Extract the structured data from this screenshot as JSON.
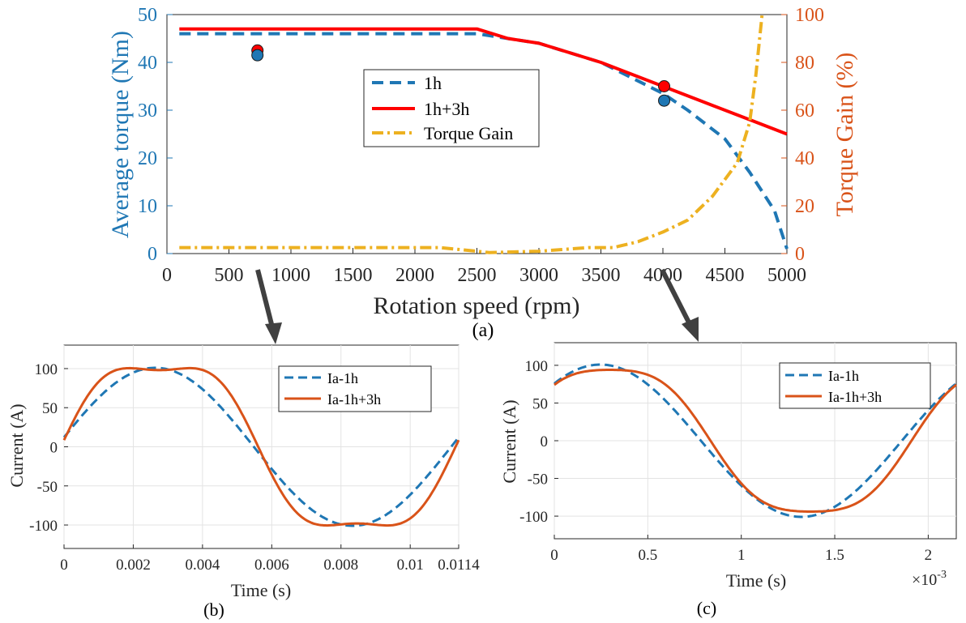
{
  "colors": {
    "blue": "#1f77b4",
    "red": "#ff0000",
    "orange": "#d95319",
    "gold": "#edb120",
    "axis_left": "#1f77b4",
    "axis_right": "#d95319",
    "arrow": "#404040"
  },
  "chart_data": [
    {
      "type": "line",
      "panel_label": "(a)",
      "xlabel": "Rotation speed (rpm)",
      "ylabel": "Average torque (Nm)",
      "y2label": "Torque Gain (%)",
      "xlim": [
        0,
        5000
      ],
      "ylim": [
        0,
        50
      ],
      "y2lim": [
        0,
        100
      ],
      "xticks": [
        0,
        500,
        1000,
        1500,
        2000,
        2500,
        3000,
        3500,
        4000,
        4500,
        5000
      ],
      "yticks": [
        0,
        10,
        20,
        30,
        40,
        50
      ],
      "y2ticks": [
        0,
        20,
        40,
        60,
        80,
        100
      ],
      "legend_position": "center",
      "series": [
        {
          "name": "1h",
          "style": "dashed",
          "color": "#1f77b4",
          "axis": "left",
          "points": [
            [
              100,
              46
            ],
            [
              2500,
              46
            ],
            [
              3000,
              44
            ],
            [
              3500,
              40
            ],
            [
              4000,
              33.5
            ],
            [
              4200,
              30
            ],
            [
              4500,
              24
            ],
            [
              4700,
              17
            ],
            [
              4900,
              9
            ],
            [
              5000,
              1
            ]
          ]
        },
        {
          "name": "1h+3h",
          "style": "solid",
          "color": "#ff0000",
          "axis": "left",
          "points": [
            [
              100,
              47
            ],
            [
              2500,
              47
            ],
            [
              2750,
              45
            ],
            [
              3000,
              44
            ],
            [
              3500,
              40
            ],
            [
              4000,
              35
            ],
            [
              4400,
              31
            ],
            [
              4700,
              28
            ],
            [
              5000,
              25
            ]
          ]
        },
        {
          "name": "Torque Gain",
          "style": "dashdot",
          "color": "#edb120",
          "axis": "right",
          "points": [
            [
              100,
              2.5
            ],
            [
              2200,
              2.5
            ],
            [
              2500,
              1
            ],
            [
              2600,
              0.4
            ],
            [
              3000,
              1
            ],
            [
              3400,
              2.5
            ],
            [
              3600,
              2.5
            ],
            [
              3800,
              5
            ],
            [
              4000,
              9
            ],
            [
              4200,
              14
            ],
            [
              4400,
              24
            ],
            [
              4600,
              38
            ],
            [
              4700,
              55
            ],
            [
              4750,
              75
            ],
            [
              4800,
              100
            ]
          ]
        }
      ],
      "markers": [
        {
          "x": 730,
          "y": 42.5,
          "color": "#ff0000"
        },
        {
          "x": 730,
          "y": 41.5,
          "color": "#1f77b4"
        },
        {
          "x": 4010,
          "y": 35,
          "color": "#ff0000"
        },
        {
          "x": 4010,
          "y": 32,
          "color": "#1f77b4"
        }
      ]
    },
    {
      "type": "line",
      "panel_label": "(b)",
      "xlabel": "Time (s)",
      "ylabel": "Current (A)",
      "xlim": [
        0,
        0.0114
      ],
      "ylim": [
        -130,
        130
      ],
      "xticks": [
        0,
        0.002,
        0.004,
        0.006,
        0.008,
        0.01,
        0.0114
      ],
      "xticklabels": [
        "0",
        "0.002",
        "0.004",
        "0.006",
        "0.008",
        "0.01",
        "0.0114"
      ],
      "yticks": [
        -100,
        -50,
        0,
        50,
        100
      ],
      "yticklabels": [
        "-100",
        "-50",
        "0",
        "50",
        "100"
      ],
      "grid": true,
      "legend_position": "top-right",
      "series": [
        {
          "name": "Ia-1h",
          "style": "dashed",
          "color": "#1f77b4",
          "amp1": 101,
          "amp3": 0,
          "phase": 0.12
        },
        {
          "name": "Ia-1h+3h",
          "style": "solid",
          "color": "#d95319",
          "amp1": 116,
          "amp3": 18,
          "phase": 0.05
        }
      ]
    },
    {
      "type": "line",
      "panel_label": "(c)",
      "xlabel": "Time (s)",
      "ylabel": "Current (A)",
      "exponent_label": "×10",
      "exponent_power": "-3",
      "xlim": [
        0,
        2.15
      ],
      "ylim": [
        -130,
        130
      ],
      "xticks": [
        0,
        0.5,
        1,
        1.5,
        2
      ],
      "xticklabels": [
        "0",
        "0.5",
        "1",
        "1.5",
        "2"
      ],
      "yticks": [
        -100,
        -50,
        0,
        50,
        100
      ],
      "yticklabels": [
        "-100",
        "-50",
        "0",
        "50",
        "100"
      ],
      "grid": true,
      "legend_position": "top-right",
      "series": [
        {
          "name": "Ia-1h",
          "style": "dashed",
          "color": "#1f77b4",
          "amp1": 101,
          "amp3": 0,
          "phase": 0.85
        },
        {
          "name": "Ia-1h+3h",
          "style": "solid",
          "color": "#d95319",
          "amp1": 103,
          "amp3": 9,
          "phase": 0.7
        }
      ]
    }
  ]
}
